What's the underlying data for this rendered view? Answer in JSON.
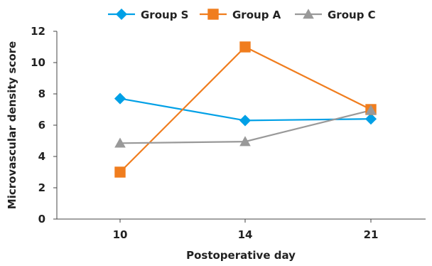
{
  "chart_data": {
    "type": "line",
    "title": "",
    "xlabel": "Postoperative day",
    "ylabel": "Microvascular density  score",
    "categories": [
      "10",
      "14",
      "21"
    ],
    "ylim": [
      0,
      12
    ],
    "yticks": [
      "0",
      "2",
      "4",
      "6",
      "8",
      "10",
      "12"
    ],
    "grid": false,
    "legend_position": "top",
    "series": [
      {
        "name": "Group S",
        "values": [
          7.7,
          6.3,
          6.4
        ],
        "color": "#00a0e6",
        "marker": "diamond"
      },
      {
        "name": "Group A",
        "values": [
          3.0,
          11.0,
          7.0
        ],
        "color": "#f07d1e",
        "marker": "square"
      },
      {
        "name": "Group C",
        "values": [
          4.85,
          4.95,
          6.95
        ],
        "color": "#999999",
        "marker": "triangle"
      }
    ]
  }
}
